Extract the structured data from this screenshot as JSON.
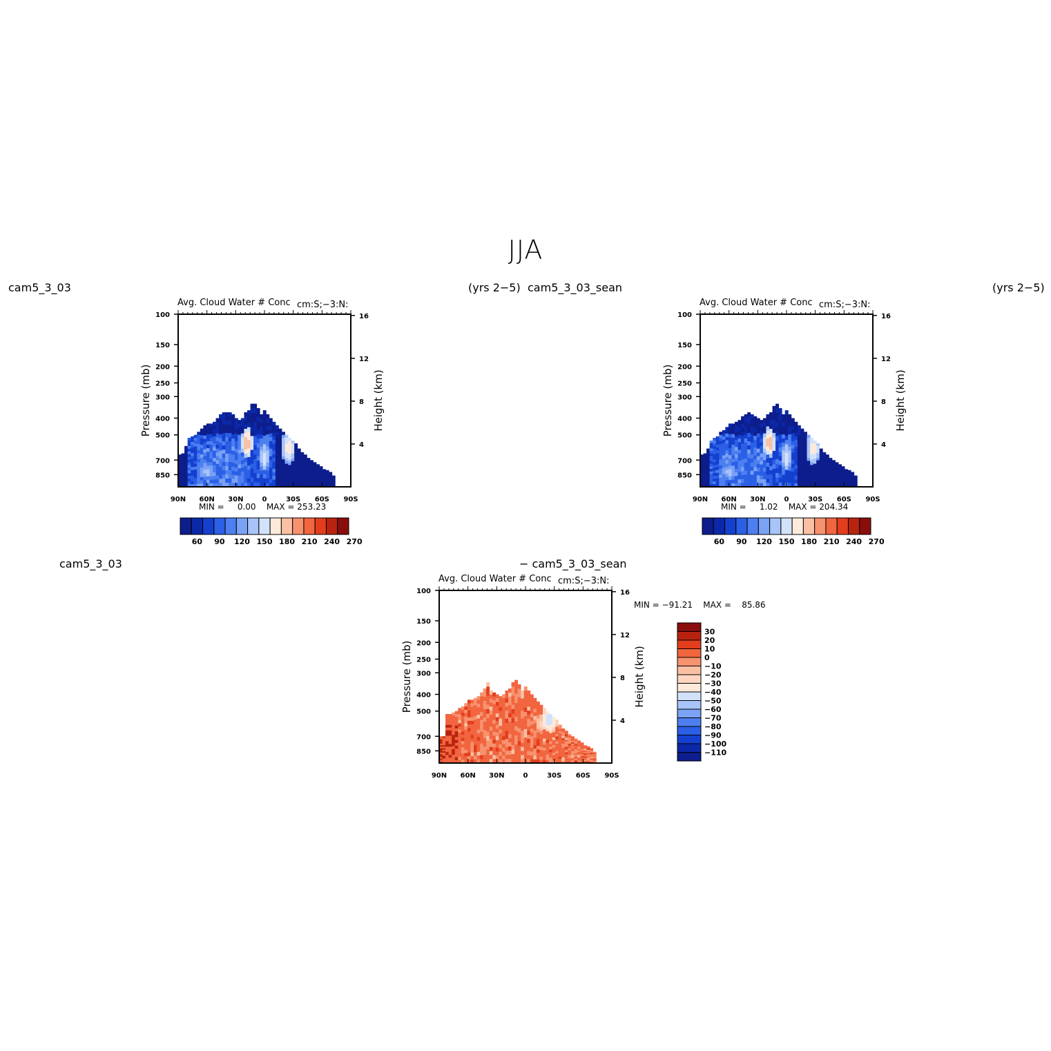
{
  "figure": {
    "title": "JJA",
    "panel1": {
      "left_label": "cam5_3_03",
      "right_label": "(yrs 2−5)"
    },
    "panel2": {
      "left_label": "cam5_3_03_sean",
      "right_label": "(yrs 2−5)"
    },
    "panel3": {
      "left_label": "cam5_3_03",
      "right_label": "− cam5_3_03_sean"
    }
  },
  "colors": {
    "field_scale": [
      "#0d1d8c",
      "#0b28a8",
      "#1440cf",
      "#2a5fe6",
      "#4d7ff0",
      "#7aa2f5",
      "#a8c4f8",
      "#d3e2fb",
      "#fdeadb",
      "#f9c0a4",
      "#f7926f",
      "#f1653f",
      "#e23e1d",
      "#b8230f",
      "#8a0d0d"
    ],
    "diff_scale": [
      "#8a0d0d",
      "#b8230f",
      "#e23e1d",
      "#f1653f",
      "#f7926f",
      "#f9c0a4",
      "#fdd5c0",
      "#fdeadb",
      "#d3e2fb",
      "#a8c4f8",
      "#7aa2f5",
      "#4d7ff0",
      "#2a5fe6",
      "#1440cf",
      "#0b28a8",
      "#0d1d8c"
    ]
  },
  "chart_data": [
    {
      "type": "heatmap",
      "title": "Avg. Cloud Water # Conc",
      "right_title": "cm:S;−3:N:",
      "xlabel": "",
      "ylabel": "Pressure (mb)",
      "y2label": "Height (km)",
      "x_ticks": [
        "90N",
        "60N",
        "30N",
        "0",
        "30S",
        "60S",
        "90S"
      ],
      "y_ticks": [
        "100",
        "150",
        "200",
        "250",
        "300",
        "400",
        "500",
        "700",
        "850"
      ],
      "y2_ticks": [
        "16",
        "12",
        "8",
        "4"
      ],
      "stats": {
        "min_label": "MIN =",
        "min": "0.00",
        "max_label": "MAX =",
        "max": "253.23"
      },
      "colorbar_labels": [
        "60",
        "90",
        "120",
        "150",
        "180",
        "210",
        "240",
        "270"
      ],
      "profile_top_hpa": [
        650,
        640,
        580,
        520,
        510,
        500,
        480,
        460,
        440,
        430,
        430,
        420,
        400,
        380,
        370,
        370,
        370,
        380,
        400,
        410,
        400,
        370,
        360,
        330,
        330,
        350,
        380,
        360,
        380,
        400,
        420,
        440,
        460,
        480,
        500,
        520,
        540,
        560,
        600,
        630,
        650,
        680,
        700,
        720,
        740,
        760,
        790,
        800,
        820,
        860,
        870,
        870,
        870,
        880,
        880
      ],
      "profile_cutoff_deg": -72,
      "hotspots": [
        {
          "lat": 18,
          "p": 560,
          "rx": 6,
          "ry": 110,
          "level": 9
        },
        {
          "lat": -25,
          "p": 600,
          "rx": 7,
          "ry": 140,
          "level": 8
        },
        {
          "lat": 0,
          "p": 680,
          "rx": 6,
          "ry": 140,
          "level": 7
        },
        {
          "lat": 60,
          "p": 820,
          "rx": 10,
          "ry": 90,
          "level": 6
        }
      ]
    },
    {
      "type": "heatmap",
      "title": "Avg. Cloud Water # Conc",
      "right_title": "cm:S;−3:N:",
      "xlabel": "",
      "ylabel": "Pressure (mb)",
      "y2label": "Height (km)",
      "x_ticks": [
        "90N",
        "60N",
        "30N",
        "0",
        "30S",
        "60S",
        "90S"
      ],
      "y_ticks": [
        "100",
        "150",
        "200",
        "250",
        "300",
        "400",
        "500",
        "700",
        "850"
      ],
      "y2_ticks": [
        "16",
        "12",
        "8",
        "4"
      ],
      "stats": {
        "min_label": "MIN =",
        "min": "1.02",
        "max_label": "MAX =",
        "max": "204.34"
      },
      "colorbar_labels": [
        "60",
        "90",
        "120",
        "150",
        "180",
        "210",
        "240",
        "270"
      ],
      "profile_top_hpa": [
        650,
        640,
        600,
        540,
        520,
        510,
        480,
        470,
        450,
        430,
        430,
        420,
        410,
        390,
        380,
        370,
        380,
        390,
        400,
        410,
        400,
        380,
        370,
        340,
        330,
        350,
        380,
        360,
        380,
        400,
        420,
        440,
        460,
        480,
        500,
        520,
        540,
        560,
        600,
        630,
        650,
        680,
        700,
        720,
        740,
        760,
        790,
        800,
        820,
        860,
        870,
        870,
        870,
        880,
        880
      ],
      "profile_cutoff_deg": -72,
      "hotspots": [
        {
          "lat": 18,
          "p": 560,
          "rx": 6,
          "ry": 110,
          "level": 9
        },
        {
          "lat": -28,
          "p": 600,
          "rx": 7,
          "ry": 140,
          "level": 8
        },
        {
          "lat": 0,
          "p": 680,
          "rx": 6,
          "ry": 140,
          "level": 7
        },
        {
          "lat": 60,
          "p": 820,
          "rx": 10,
          "ry": 90,
          "level": 6
        }
      ]
    },
    {
      "type": "heatmap",
      "title": "Avg. Cloud Water # Conc",
      "right_title": "cm:S;−3:N:",
      "xlabel": "",
      "ylabel": "Pressure (mb)",
      "y2label": "Height (km)",
      "x_ticks": [
        "90N",
        "60N",
        "30N",
        "0",
        "30S",
        "60S",
        "90S"
      ],
      "y_ticks": [
        "100",
        "150",
        "200",
        "250",
        "300",
        "400",
        "500",
        "700",
        "850"
      ],
      "y2_ticks": [
        "16",
        "12",
        "8",
        "4"
      ],
      "stats": {
        "min_label": "MIN =",
        "min": "−91.21",
        "max_label": "MAX =",
        "max": "85.86"
      },
      "colorbar_labels": [
        "30",
        "20",
        "10",
        "0",
        "−10",
        "−20",
        "−30",
        "−40",
        "−50",
        "−60",
        "−70",
        "−80",
        "−90",
        "−100",
        "−110"
      ],
      "profile_top_hpa": [
        700,
        700,
        520,
        520,
        510,
        500,
        480,
        470,
        450,
        430,
        430,
        420,
        410,
        390,
        370,
        340,
        380,
        390,
        400,
        410,
        400,
        380,
        370,
        340,
        330,
        350,
        380,
        360,
        380,
        400,
        420,
        440,
        460,
        480,
        500,
        520,
        540,
        560,
        600,
        630,
        650,
        680,
        700,
        720,
        740,
        760,
        790,
        800,
        820,
        860,
        870,
        870,
        870,
        880,
        880
      ],
      "profile_cutoff_deg": -72,
      "hotspots": [
        {
          "lat": -25,
          "p": 560,
          "rx": 9,
          "ry": 110,
          "level": 8
        },
        {
          "lat": -15,
          "p": 600,
          "rx": 4,
          "ry": 90,
          "level": 6
        },
        {
          "lat": 80,
          "p": 640,
          "rx": 5,
          "ry": 120,
          "level": 0
        }
      ]
    }
  ]
}
